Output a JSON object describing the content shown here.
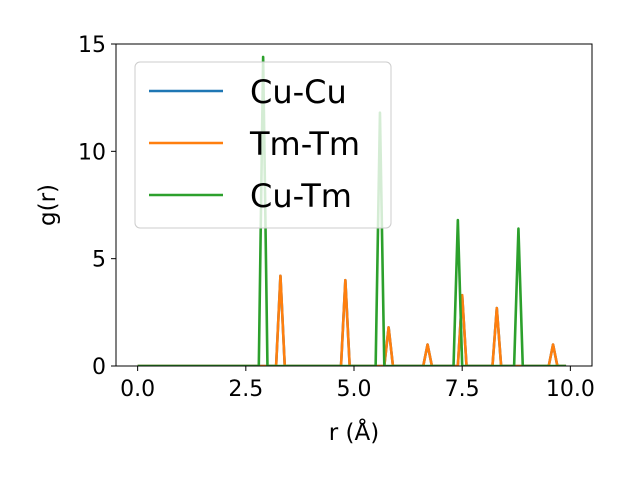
{
  "chart_data": {
    "type": "line",
    "title": "",
    "xlabel": "r (Å)",
    "ylabel": "g(r)",
    "xlim": [
      -0.5,
      10.5
    ],
    "ylim": [
      0,
      15
    ],
    "xticks": [
      0.0,
      2.5,
      5.0,
      7.5,
      10.0
    ],
    "xtick_labels": [
      "0.0",
      "2.5",
      "5.0",
      "7.5",
      "10.0"
    ],
    "yticks": [
      0,
      5,
      10,
      15
    ],
    "ytick_labels": [
      "0",
      "5",
      "10",
      "15"
    ],
    "grid": false,
    "legend_position": "upper-left",
    "series": [
      {
        "name": "Cu-Cu",
        "color": "#1f77b4",
        "x": [
          0.0,
          3.2,
          3.3,
          3.4,
          4.7,
          4.8,
          4.9,
          5.7,
          5.8,
          5.9,
          6.6,
          6.7,
          6.8,
          7.4,
          7.5,
          7.6,
          8.2,
          8.3,
          8.4,
          9.5,
          9.6,
          9.7,
          9.9
        ],
        "y": [
          0.0,
          0.0,
          4.2,
          0.0,
          0.0,
          4.0,
          0.0,
          0.0,
          1.8,
          0.0,
          0.0,
          1.0,
          0.0,
          0.0,
          3.3,
          0.0,
          0.0,
          2.7,
          0.0,
          0.0,
          1.0,
          0.0,
          0.0
        ]
      },
      {
        "name": "Tm-Tm",
        "color": "#ff7f0e",
        "x": [
          0.0,
          3.2,
          3.3,
          3.4,
          4.7,
          4.8,
          4.9,
          5.7,
          5.8,
          5.9,
          6.6,
          6.7,
          6.8,
          7.4,
          7.5,
          7.6,
          8.2,
          8.3,
          8.4,
          9.5,
          9.6,
          9.7,
          9.9
        ],
        "y": [
          0.0,
          0.0,
          4.2,
          0.0,
          0.0,
          4.0,
          0.0,
          0.0,
          1.8,
          0.0,
          0.0,
          1.0,
          0.0,
          0.0,
          3.3,
          0.0,
          0.0,
          2.7,
          0.0,
          0.0,
          1.0,
          0.0,
          0.0
        ]
      },
      {
        "name": "Cu-Tm",
        "color": "#2ca02c",
        "x": [
          0.0,
          2.8,
          2.9,
          3.0,
          5.5,
          5.6,
          5.7,
          7.3,
          7.4,
          7.5,
          8.7,
          8.8,
          8.9,
          9.9
        ],
        "y": [
          0.0,
          0.0,
          14.4,
          0.0,
          0.0,
          11.8,
          0.0,
          0.0,
          6.8,
          0.0,
          0.0,
          6.4,
          0.0,
          0.0
        ]
      }
    ]
  }
}
